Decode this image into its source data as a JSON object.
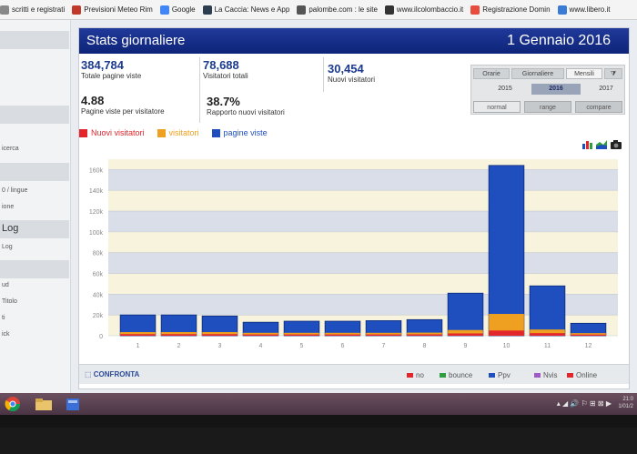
{
  "bookmarks": [
    {
      "label": "scritti e registrati",
      "icon": "page-icon",
      "color": "#888888"
    },
    {
      "label": "Previsioni Meteo Rim",
      "icon": "meteo-icon",
      "color": "#c0392b"
    },
    {
      "label": "Google",
      "icon": "google-icon",
      "color": "#4285f4"
    },
    {
      "label": "La Caccia: News e App",
      "icon": "page-icon",
      "color": "#2c3e50"
    },
    {
      "label": "palombe.com : le site",
      "icon": "page-icon",
      "color": "#555555"
    },
    {
      "label": "www.ilcolombaccio.it",
      "icon": "page-icon",
      "color": "#333333"
    },
    {
      "label": "Registrazione Domin",
      "icon": "star-icon",
      "color": "#e74c3c"
    },
    {
      "label": "www.libero.it",
      "icon": "google-icon",
      "color": "#3a7bd5"
    }
  ],
  "sidebar": {
    "items": [
      "icerca",
      "0 / lingue",
      "ione",
      "Log",
      "Log",
      "ud",
      "Titolo",
      "ti",
      "ick"
    ]
  },
  "panel": {
    "title": "Stats giornaliere",
    "date": "1 Gennaio 2016",
    "stats": [
      {
        "value": "384,784",
        "label": "Totale pagine viste"
      },
      {
        "value": "78,688",
        "label": "Visitatori totali"
      },
      {
        "value": "30,454",
        "label": "Nuovi visitatori"
      },
      {
        "value": "4.88",
        "label": "Pagine viste per visitatore"
      },
      {
        "value": "38.7%",
        "label": "Rapporto nuovi visitatori"
      }
    ],
    "tabs": [
      "Orarie",
      "Giornaliere",
      "Mensili"
    ],
    "active_tab": "Mensili",
    "years": [
      "2015",
      "2016",
      "2017"
    ],
    "active_year": "2016",
    "modes": [
      "normal",
      "range",
      "compare"
    ],
    "active_mode": "normal"
  },
  "chart_data": {
    "type": "bar",
    "categories": [
      "1",
      "2",
      "3",
      "4",
      "5",
      "6",
      "7",
      "8",
      "9",
      "10",
      "11",
      "12"
    ],
    "series": [
      {
        "name": "Nuovi visitatori",
        "color": "#e3262b",
        "values": [
          1500,
          1500,
          1500,
          1200,
          1200,
          1200,
          1200,
          1300,
          2200,
          5000,
          2500,
          1100
        ]
      },
      {
        "name": "visitatori",
        "color": "#f0a020",
        "values": [
          3500,
          3500,
          3500,
          2800,
          2800,
          2800,
          2800,
          3000,
          5500,
          21000,
          6000,
          2500
        ]
      },
      {
        "name": "pagine viste",
        "color": "#1f4fbf",
        "values": [
          20000,
          20000,
          19000,
          13000,
          14000,
          14000,
          14500,
          15500,
          41000,
          164000,
          48000,
          12000
        ]
      }
    ],
    "y_ticks": [
      "0",
      "20k",
      "40k",
      "60k",
      "80k",
      "100k",
      "120k",
      "140k",
      "160k"
    ],
    "ylim": [
      0,
      170000
    ],
    "grid": true
  },
  "footer": {
    "compare": "CONFRONTA",
    "legend": [
      {
        "label": "no",
        "color": "#e3262b"
      },
      {
        "label": "bounce",
        "color": "#2e9e3e"
      },
      {
        "label": "Ppv",
        "color": "#1f4fbf"
      },
      {
        "label": "Nvis",
        "color": "#a05ac8"
      },
      {
        "label": "Online",
        "color": "#e3262b"
      }
    ]
  },
  "taskbar": {
    "apps": [
      "chrome-icon",
      "folder-icon",
      "explorer-icon"
    ],
    "tray": "▴ ◢ 🔊 ⚐ ⊞ ⊠ ▶",
    "time": "21:0",
    "date": "1/01/2"
  },
  "brand": "hp"
}
